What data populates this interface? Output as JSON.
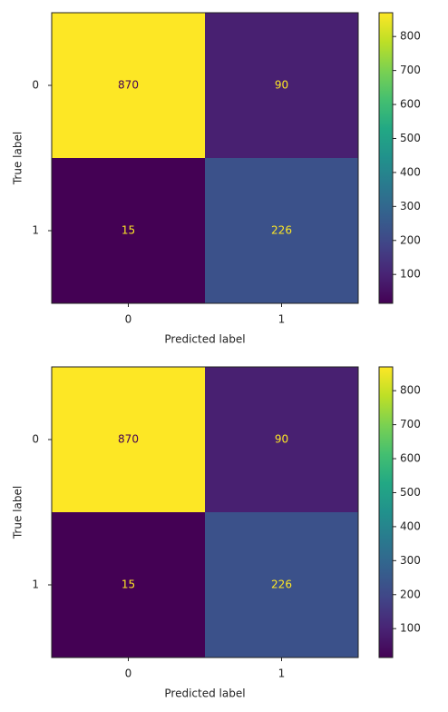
{
  "chart_data": [
    {
      "type": "heatmap",
      "x_label": "Predicted label",
      "y_label": "True label",
      "x_categories": [
        "0",
        "1"
      ],
      "y_categories": [
        "0",
        "1"
      ],
      "values": [
        [
          870,
          90
        ],
        [
          15,
          226
        ]
      ],
      "colormap": "viridis",
      "clim": [
        15,
        870
      ],
      "cticks": [
        100,
        200,
        300,
        400,
        500,
        600,
        700,
        800
      ]
    },
    {
      "type": "heatmap",
      "x_label": "Predicted label",
      "y_label": "True label",
      "x_categories": [
        "0",
        "1"
      ],
      "y_categories": [
        "0",
        "1"
      ],
      "values": [
        [
          870,
          90
        ],
        [
          15,
          226
        ]
      ],
      "colormap": "viridis",
      "clim": [
        15,
        870
      ],
      "cticks": [
        100,
        200,
        300,
        400,
        500,
        600,
        700,
        800
      ]
    }
  ]
}
